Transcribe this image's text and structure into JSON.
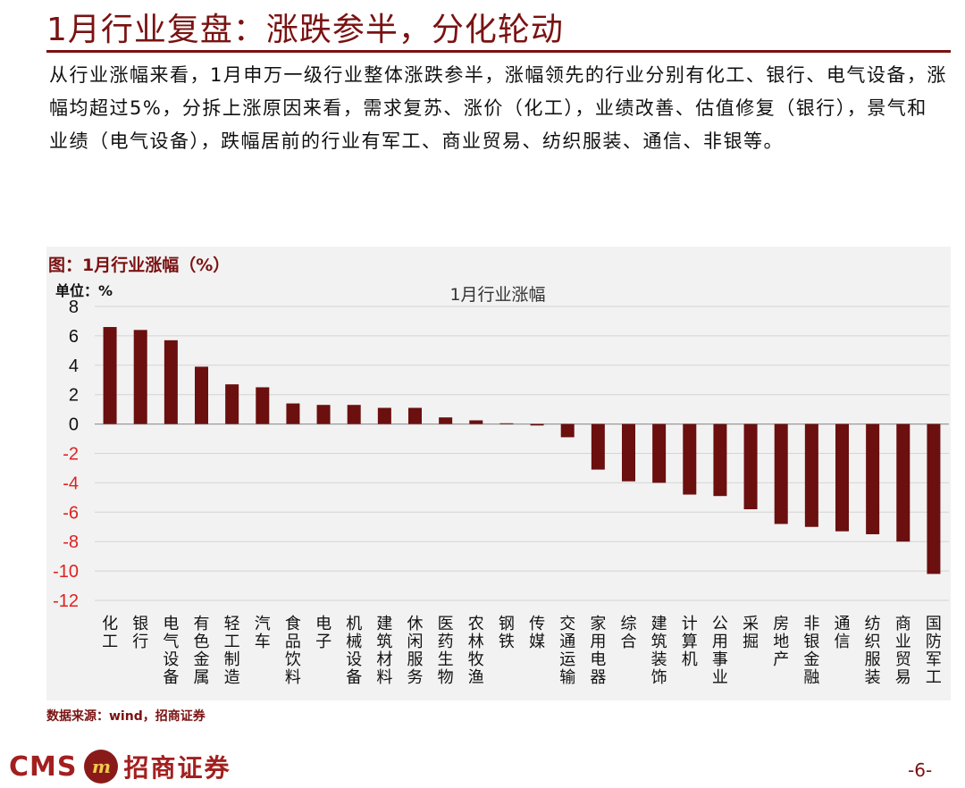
{
  "header": {
    "title": "1月行业复盘：涨跌参半，分化轮动"
  },
  "intro": {
    "text": "从行业涨幅来看，1月申万一级行业整体涨跌参半，涨幅领先的行业分别有化工、银行、电气设备，涨幅均超过5%，分拆上涨原因来看，需求复苏、涨价（化工），业绩改善、估值修复（银行），景气和业绩（电气设备），跌幅居前的行业有军工、商业贸易、纺织服装、通信、非银等。"
  },
  "figure": {
    "caption": "图：1月行业涨幅（%）",
    "unit_label": "单位：%",
    "source": "数据来源：wind，招商证券"
  },
  "chart_data": {
    "type": "bar",
    "title": "1月行业涨幅",
    "xlabel": "",
    "ylabel": "",
    "ylim": [
      -12,
      8
    ],
    "yticks": [
      8,
      6,
      4,
      2,
      0,
      -2,
      -4,
      -6,
      -8,
      -10,
      -12
    ],
    "grid": true,
    "bar_color": "#6b0f0f",
    "positive_tick_color": "#111111",
    "negative_tick_color": "#e02020",
    "categories": [
      "化工",
      "银行",
      "电气设备",
      "有色金属",
      "轻工制造",
      "汽车",
      "食品饮料",
      "电子",
      "机械设备",
      "建筑材料",
      "休闲服务",
      "医药生物",
      "农林牧渔",
      "钢铁",
      "传媒",
      "交通运输",
      "家用电器",
      "综合",
      "建筑装饰",
      "计算机",
      "公用事业",
      "采掘",
      "房地产",
      "非银金融",
      "通信",
      "纺织服装",
      "商业贸易",
      "国防军工"
    ],
    "values": [
      6.6,
      6.4,
      5.7,
      3.9,
      2.7,
      2.5,
      1.4,
      1.3,
      1.3,
      1.1,
      1.1,
      0.45,
      0.25,
      0.05,
      -0.1,
      -0.9,
      -3.1,
      -3.9,
      -4.0,
      -4.8,
      -4.9,
      -5.8,
      -6.8,
      -7.0,
      -7.3,
      -7.5,
      -8.0,
      -10.2
    ]
  },
  "footer": {
    "logo_cms": "CMS",
    "logo_name": "招商证券",
    "page_number": "-6-"
  }
}
